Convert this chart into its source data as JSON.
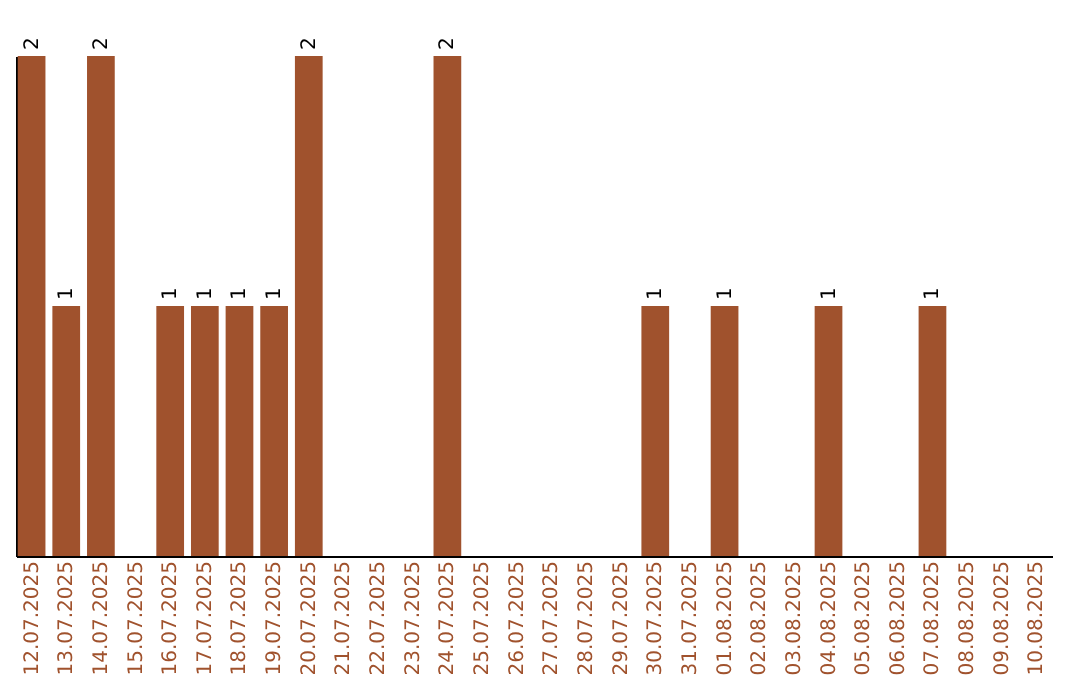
{
  "chart_data": {
    "type": "bar",
    "categories": [
      "12.07.2025",
      "13.07.2025",
      "14.07.2025",
      "15.07.2025",
      "16.07.2025",
      "17.07.2025",
      "18.07.2025",
      "19.07.2025",
      "20.07.2025",
      "21.07.2025",
      "22.07.2025",
      "23.07.2025",
      "24.07.2025",
      "25.07.2025",
      "26.07.2025",
      "27.07.2025",
      "28.07.2025",
      "29.07.2025",
      "30.07.2025",
      "31.07.2025",
      "01.08.2025",
      "02.08.2025",
      "03.08.2025",
      "04.08.2025",
      "05.08.2025",
      "06.08.2025",
      "07.08.2025",
      "08.08.2025",
      "09.08.2025",
      "10.08.2025"
    ],
    "values": [
      2,
      1,
      2,
      0,
      1,
      1,
      1,
      1,
      2,
      0,
      0,
      0,
      2,
      0,
      0,
      0,
      0,
      0,
      1,
      0,
      1,
      0,
      0,
      1,
      0,
      0,
      1,
      0,
      0,
      0
    ],
    "value_labels": [
      "2",
      "1",
      "2",
      null,
      "1",
      "1",
      "1",
      "1",
      "2",
      null,
      null,
      null,
      "2",
      null,
      null,
      null,
      null,
      null,
      "1",
      null,
      "1",
      null,
      null,
      "1",
      null,
      null,
      "1",
      null,
      null,
      null
    ],
    "color": "#a0522d",
    "ylim": [
      0,
      2
    ],
    "tick_labels": "x",
    "grid": false
  }
}
